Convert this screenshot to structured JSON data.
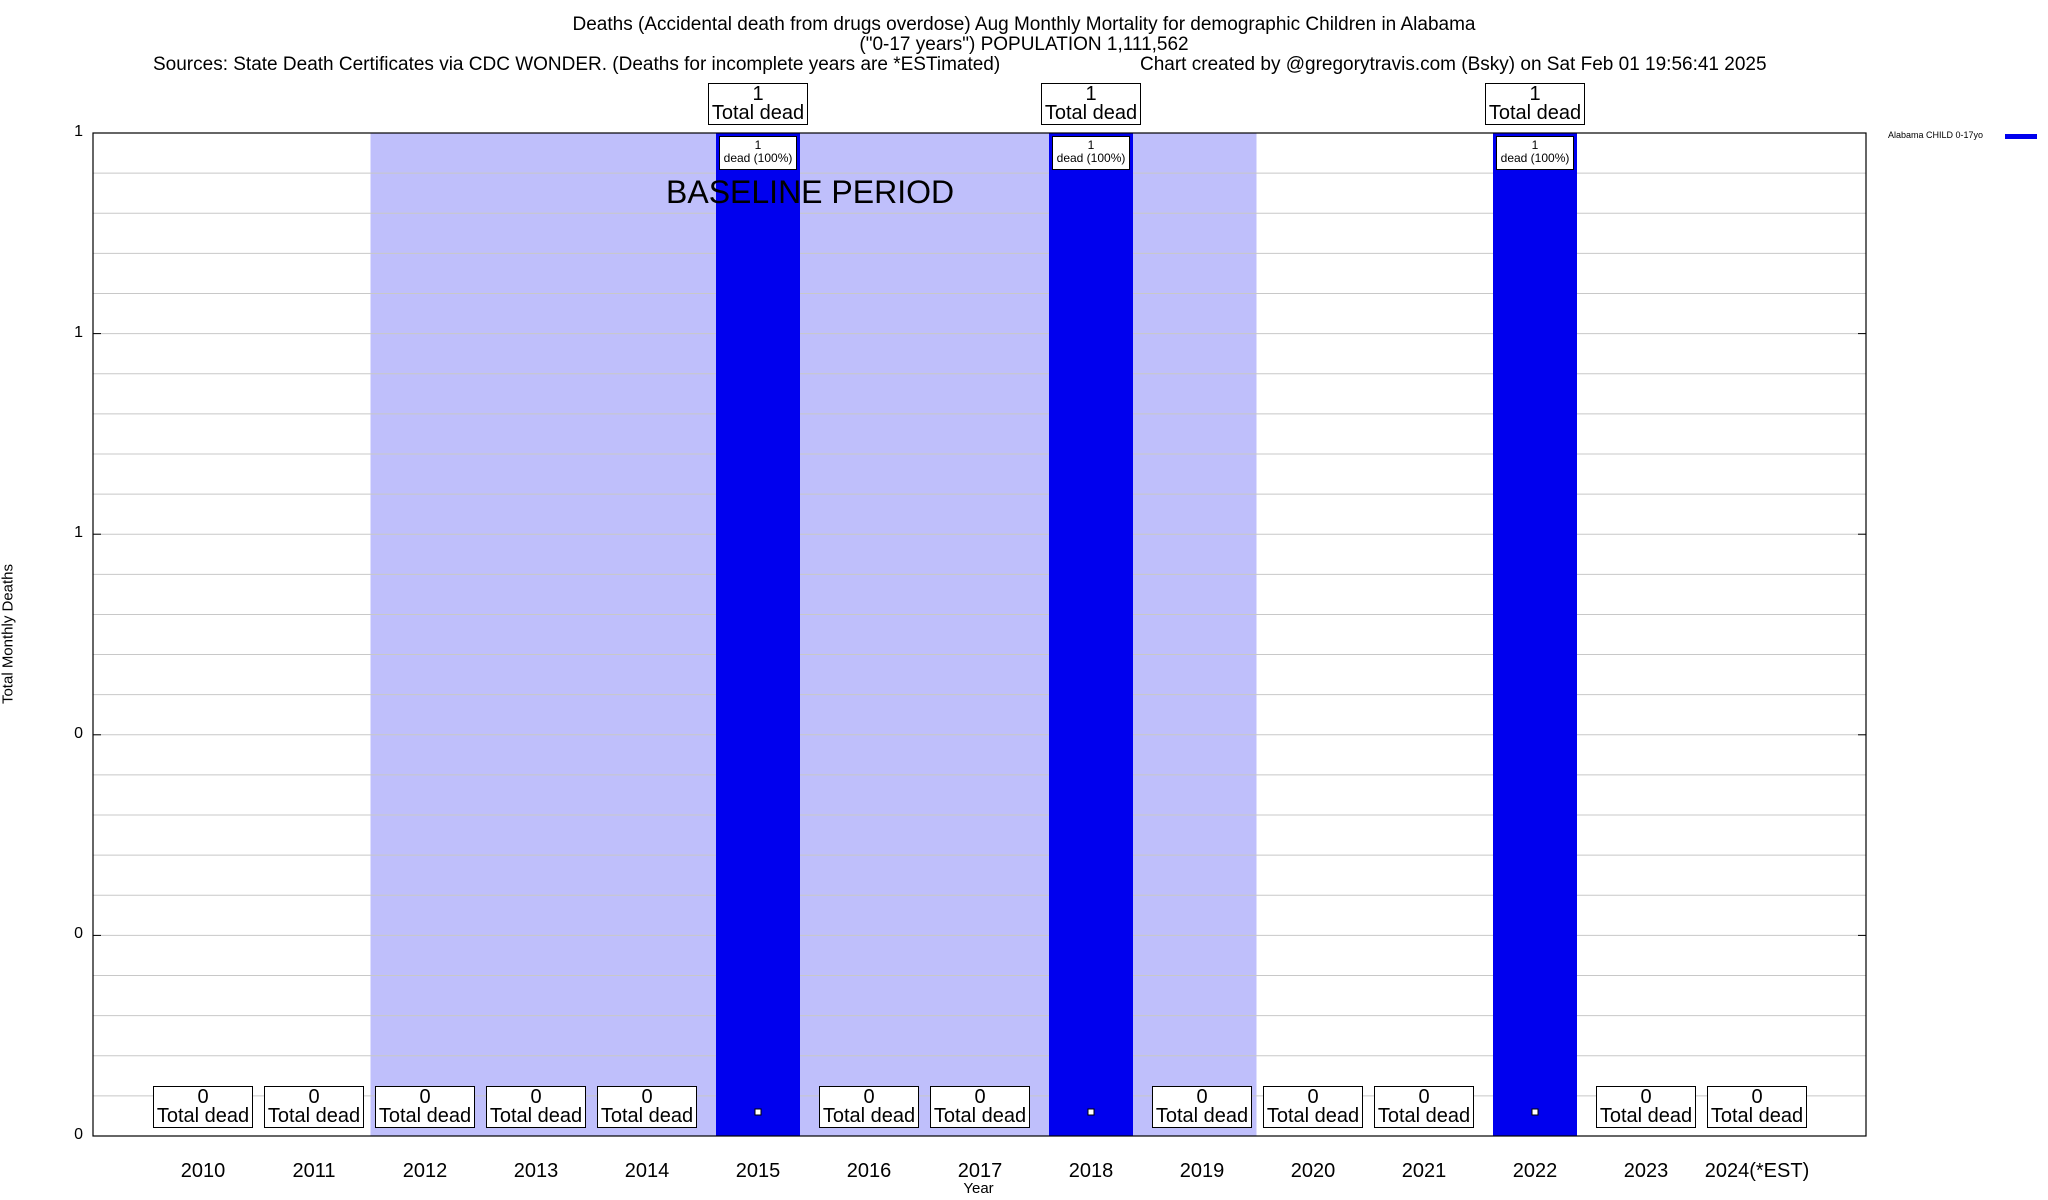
{
  "title_lines": {
    "line1": "Deaths (Accidental death from drugs overdose) Aug Monthly Mortality for demographic Children in Alabama",
    "line2": "(\"0-17 years\") POPULATION 1,111,562",
    "line3": "Sources: State Death Certificates via CDC WONDER. (Deaths for incomplete years are *ESTimated)",
    "line4": "Chart created by @gregorytravis.com (Bsky) on Sat Feb 01 19:56:41 2025"
  },
  "baseline_label": "BASELINE PERIOD",
  "total_label": "Total dead",
  "colors": {
    "bar": "#0000ee",
    "baseline_band": "#bfbffb",
    "grid": "#c8c8c8"
  },
  "chart_data": {
    "type": "bar",
    "xlabel": "Year",
    "ylabel": "Total Monthly Deaths",
    "ylim": [
      0,
      1
    ],
    "ytick_labels": [
      "0",
      "0",
      "0",
      "1",
      "1",
      "1"
    ],
    "categories": [
      "2010",
      "2011",
      "2012",
      "2013",
      "2014",
      "2015",
      "2016",
      "2017",
      "2018",
      "2019",
      "2020",
      "2021",
      "2022",
      "2023",
      "2024(*EST)"
    ],
    "series": [
      {
        "name": "Alabama CHILD 0-17yo",
        "values": [
          0,
          0,
          0,
          0,
          0,
          1,
          0,
          0,
          1,
          0,
          0,
          0,
          1,
          0,
          0
        ]
      }
    ],
    "bar_annotations": [
      "1\ndead (100%)",
      "1\ndead (100%)",
      "1\ndead (100%)"
    ],
    "baseline_period": {
      "from": "2012",
      "to": "2019"
    },
    "legend": {
      "position": "top-right",
      "label": "Alabama CHILD 0-17yo"
    },
    "grid": true
  }
}
